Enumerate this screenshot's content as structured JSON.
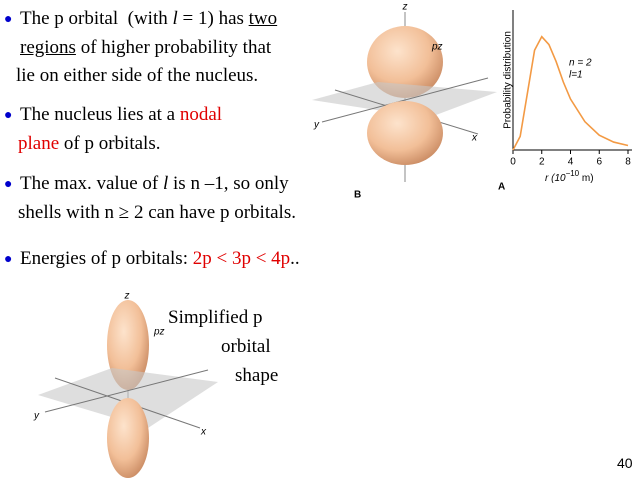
{
  "bullets": [
    {
      "lines": [
        [
          "The p orbital  (with ",
          "l",
          " = 1) has ",
          "two"
        ],
        [
          "regions",
          " of higher probability that"
        ],
        [
          "lie on either side of the nucleus."
        ]
      ]
    },
    {
      "lines": [
        [
          "The nucleus lies at a ",
          "nodal"
        ],
        [
          "plane",
          " of p orbitals."
        ]
      ]
    },
    {
      "lines": [
        [
          "The max. value of ",
          "l",
          " is n –1, so only"
        ],
        [
          "shells with n ≥ 2 can have p orbitals."
        ]
      ]
    },
    {
      "lines": [
        [
          "Energies of p orbitals: ",
          "2p < 3p < 4p",
          ".."
        ]
      ]
    }
  ],
  "figure_b": {
    "z": "z",
    "y": "y",
    "x": "x",
    "orbital": "pz",
    "panel": "B"
  },
  "plot": {
    "y_label": "Probability distribution",
    "annotation": [
      "n = 2",
      "l=1"
    ],
    "x_label": [
      "r (10",
      "−10",
      " m)"
    ],
    "panel": "A",
    "xlim": [
      0,
      8
    ],
    "ylim": [
      0,
      1.05
    ],
    "xticks": [
      0,
      2,
      4,
      6,
      8
    ],
    "color": "#f39a44",
    "x": [
      0,
      0.5,
      1,
      1.5,
      2,
      2.5,
      3,
      3.5,
      4,
      5,
      6,
      7,
      8
    ],
    "y": [
      0,
      0.12,
      0.5,
      0.88,
      1,
      0.93,
      0.78,
      0.6,
      0.45,
      0.25,
      0.13,
      0.07,
      0.04
    ]
  },
  "figure_bottom": {
    "z": "z",
    "y": "y",
    "x": "x",
    "orbital": "pz"
  },
  "caption": [
    "Simplified p",
    "orbital",
    "shape"
  ],
  "page_number": "40"
}
